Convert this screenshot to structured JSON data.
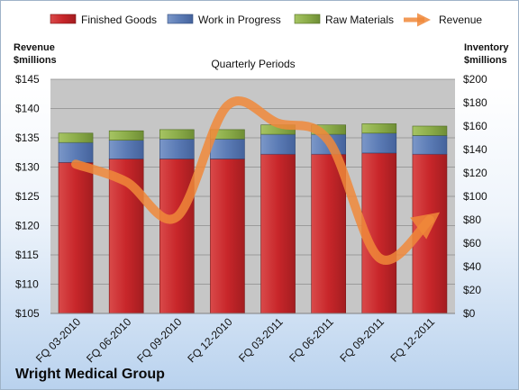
{
  "company": "Wright Medical Group",
  "colors": {
    "finished": "#c8262a",
    "wip": "#5b7bb5",
    "raw": "#8cad4a",
    "revenue": "#f0883a",
    "plot_bg": "#c6c6c6"
  },
  "chart_data": {
    "type": "bar",
    "title": "Quarterly Periods",
    "legend_position": "top",
    "grid": true,
    "categories": [
      "FQ 03-2010",
      "FQ 06-2010",
      "FQ 09-2010",
      "FQ 12-2010",
      "FQ 03-2011",
      "FQ 06-2011",
      "FQ 09-2011",
      "FQ 12-2011"
    ],
    "left_axis": {
      "label_line1": "Revenue",
      "label_line2": "$millions",
      "min": 105,
      "max": 145,
      "step": 5,
      "tick_labels": [
        "$105",
        "$110",
        "$115",
        "$120",
        "$125",
        "$130",
        "$135",
        "$140",
        "$145"
      ]
    },
    "right_axis": {
      "label_line1": "Inventory",
      "label_line2": "$millions",
      "min": 0,
      "max": 200,
      "step": 20,
      "tick_labels": [
        "$0",
        "$20",
        "$40",
        "$60",
        "$80",
        "$100",
        "$120",
        "$140",
        "$160",
        "$180",
        "$200"
      ]
    },
    "series": [
      {
        "name": "Finished Goods",
        "axis": "right",
        "kind": "stacked-bar",
        "values": [
          129,
          132,
          132,
          132,
          136,
          136,
          137,
          136
        ]
      },
      {
        "name": "Work in Progress",
        "axis": "right",
        "kind": "stacked-bar",
        "values": [
          17,
          16,
          17,
          17,
          17,
          17,
          17,
          16
        ]
      },
      {
        "name": "Raw Materials",
        "axis": "right",
        "kind": "stacked-bar",
        "values": [
          8,
          8,
          8,
          8,
          8,
          8,
          8,
          8
        ]
      },
      {
        "name": "Revenue",
        "axis": "left",
        "kind": "line",
        "values": [
          130.5,
          127.5,
          121.5,
          140.5,
          137.5,
          134.5,
          114.5,
          121
        ]
      }
    ]
  }
}
